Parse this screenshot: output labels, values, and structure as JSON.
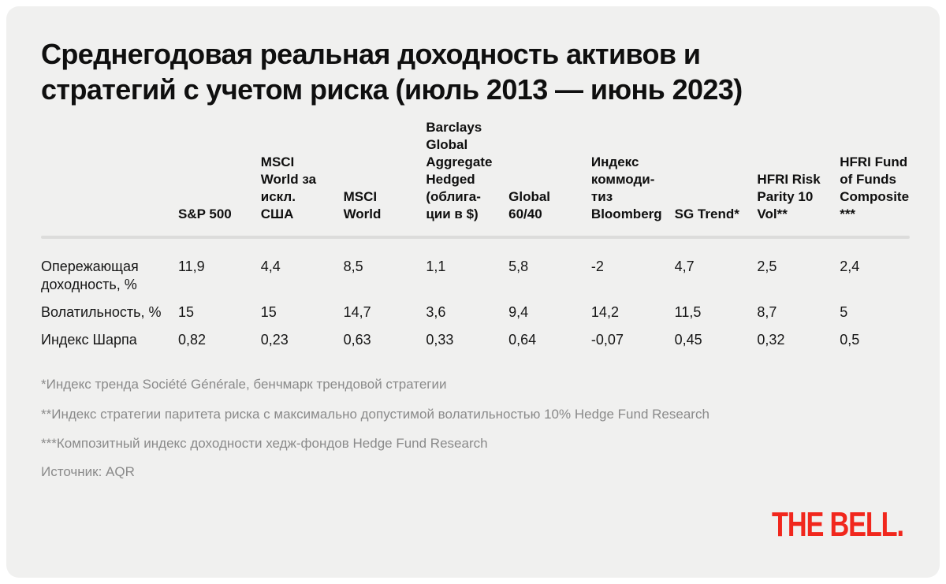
{
  "title": "Среднегодовая реальная доходность активов и стратегий с учетом риска (июль 2013 — июнь 2023)",
  "table": {
    "columns": [
      "",
      "S&P 500",
      "MSCI World за искл. США",
      "MSCI World",
      "Barclays Global Aggregate Hedged (облига-ции в $)",
      "Global 60/40",
      "Индекс коммоди-тиз Bloomberg",
      "SG Trend*",
      "HFRI Risk Parity 10 Vol**",
      "HFRI Fund of Funds Composite ***"
    ],
    "rows": [
      {
        "label": "Опережающая доходность, %",
        "values": [
          "11,9",
          "4,4",
          "8,5",
          "1,1",
          "5,8",
          "-2",
          "4,7",
          "2,5",
          "2,4"
        ]
      },
      {
        "label": "Волатильность, %",
        "values": [
          "15",
          "15",
          "14,7",
          "3,6",
          "9,4",
          "14,2",
          "11,5",
          "8,7",
          "5"
        ]
      },
      {
        "label": "Индекс Шарпа",
        "values": [
          "0,82",
          "0,23",
          "0,63",
          "0,33",
          "0,64",
          "-0,07",
          "0,45",
          "0,32",
          "0,5"
        ]
      }
    ]
  },
  "footnotes": [
    "*Индекс тренда Société Générale, бенчмарк трендовой стратегии",
    "**Индекс стратегии паритета риска с максимально допустимой волатильностью 10% Hedge Fund Research",
    "***Композитный индекс доходности хедж-фондов Hedge Fund Research"
  ],
  "source": "Источник: AQR",
  "logo": "THE BELL.",
  "colors": {
    "card_bg": "#f0f0ef",
    "text": "#0f0f0f",
    "muted_text": "#8a8a8a",
    "divider": "#dcdcdb",
    "brand_red": "#f1271d"
  },
  "chart_data": {
    "type": "table",
    "title": "Среднегодовая реальная доходность активов и стратегий с учетом риска (июль 2013 — июнь 2023)",
    "columns": [
      "S&P 500",
      "MSCI World за искл. США",
      "MSCI World",
      "Barclays Global Aggregate Hedged (облигации в $)",
      "Global 60/40",
      "Индекс коммодитиз Bloomberg",
      "SG Trend*",
      "HFRI Risk Parity 10 Vol**",
      "HFRI Fund of Funds Composite ***"
    ],
    "rows": [
      {
        "label": "Опережающая доходность, %",
        "values": [
          11.9,
          4.4,
          8.5,
          1.1,
          5.8,
          -2,
          4.7,
          2.5,
          2.4
        ]
      },
      {
        "label": "Волатильность, %",
        "values": [
          15,
          15,
          14.7,
          3.6,
          9.4,
          14.2,
          11.5,
          8.7,
          5
        ]
      },
      {
        "label": "Индекс Шарпа",
        "values": [
          0.82,
          0.23,
          0.63,
          0.33,
          0.64,
          -0.07,
          0.45,
          0.32,
          0.5
        ]
      }
    ],
    "source": "AQR"
  }
}
